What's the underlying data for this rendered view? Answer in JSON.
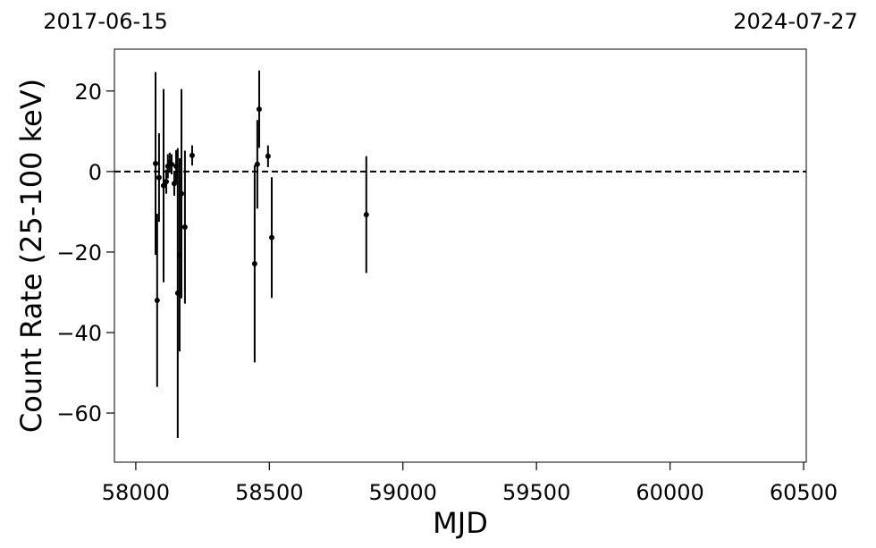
{
  "chart_data": {
    "type": "errorbar",
    "xlabel": "MJD",
    "ylabel": "Count Rate (25-100 keV)",
    "top_labels": [
      "2017-06-15",
      "2024-07-27"
    ],
    "xlim": [
      57920,
      60510
    ],
    "ylim": [
      -72.2,
      30.4
    ],
    "xticks": [
      58000,
      58500,
      59000,
      59500,
      60000,
      60500
    ],
    "yticks": [
      {
        "value": -60,
        "label": "−60"
      },
      {
        "value": -40,
        "label": "−40"
      },
      {
        "value": -20,
        "label": "−20"
      },
      0,
      20
    ],
    "hline": 0,
    "color": "#000000",
    "x": [
      58074,
      58080,
      58087,
      58104,
      58114,
      58120,
      58127,
      58134,
      58144,
      58151,
      58157,
      58164,
      58171,
      58184,
      58211,
      58445,
      58455,
      58462,
      58495,
      58509,
      58863
    ],
    "values": [
      2,
      -32,
      -1.5,
      -3.5,
      -2.5,
      1.3,
      2.2,
      1.8,
      -3,
      1.3,
      -30.2,
      -20.7,
      -5.5,
      -13.8,
      4,
      -22.9,
      1.8,
      15.5,
      3.8,
      -16.4,
      -10.7
    ],
    "errors": [
      22.7,
      21.5,
      11,
      24,
      3,
      3,
      2.5,
      2.5,
      3,
      4,
      36,
      24,
      26,
      19,
      2.5,
      24.5,
      11,
      9.6,
      2.7,
      15,
      14.5
    ]
  }
}
